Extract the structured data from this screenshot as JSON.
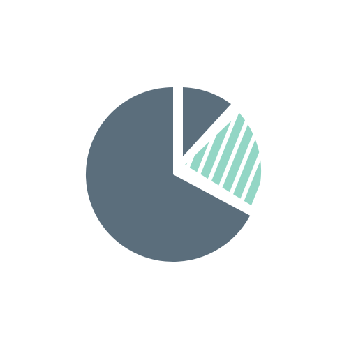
{
  "icon": {
    "name": "pie-chart-icon",
    "background_color": "#ffffff",
    "colors": {
      "main_slice": "#5b6e7c",
      "small_slice": "#5b6e7c",
      "highlight_slice": "#93d6c5",
      "gap": "#ffffff"
    },
    "slices": [
      {
        "name": "main-slice",
        "fraction": 0.694
      },
      {
        "name": "small-slice",
        "fraction": 0.106
      },
      {
        "name": "highlight-slice",
        "fraction": 0.2,
        "pattern": "diagonal-stripes",
        "exploded": true
      }
    ]
  }
}
